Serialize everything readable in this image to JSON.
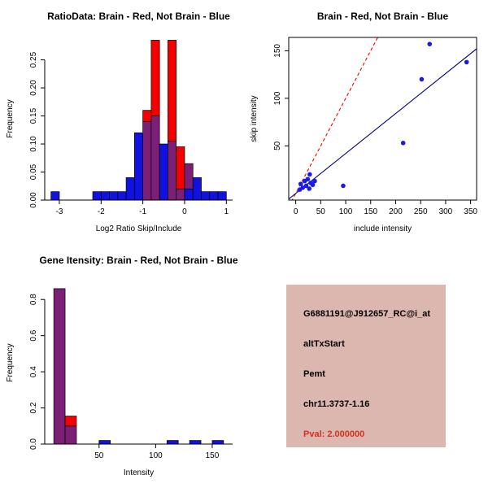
{
  "colors": {
    "background": "#ffffff",
    "red": "#f40000",
    "blue": "#1212e0",
    "purple": "#7b2076",
    "navy": "#00008b",
    "point_blue": "#1a1ae0",
    "axis": "#000000"
  },
  "chart_data": [
    {
      "id": "ratio-histogram",
      "type": "bar",
      "title": "RatioData: Brain - Red, Not Brain - Blue",
      "xlabel": "Log2 Ratio Skip/Include",
      "ylabel": "Frequency",
      "xlim": [
        -3.35,
        1.15
      ],
      "ylim": [
        0,
        0.29
      ],
      "xticks": [
        -3,
        -2,
        -1,
        0,
        1
      ],
      "yticks": [
        [
          0,
          "0.00"
        ],
        [
          0.05,
          "0.05"
        ],
        [
          0.1,
          "0.10"
        ],
        [
          0.15,
          "0.15"
        ],
        [
          0.2,
          "0.20"
        ],
        [
          0.25,
          "0.25"
        ]
      ],
      "bin_width": 0.2,
      "bars": [
        {
          "x0": -3.2,
          "segments": [
            [
              "blue",
              0.015
            ]
          ]
        },
        {
          "x0": -2.2,
          "segments": [
            [
              "blue",
              0.015
            ]
          ]
        },
        {
          "x0": -2.0,
          "segments": [
            [
              "blue",
              0.015
            ]
          ]
        },
        {
          "x0": -1.8,
          "segments": [
            [
              "blue",
              0.015
            ]
          ]
        },
        {
          "x0": -1.6,
          "segments": [
            [
              "blue",
              0.015
            ]
          ]
        },
        {
          "x0": -1.4,
          "segments": [
            [
              "blue",
              0.04
            ]
          ]
        },
        {
          "x0": -1.2,
          "segments": [
            [
              "blue",
              0.12
            ]
          ]
        },
        {
          "x0": -1.0,
          "segments": [
            [
              "purple",
              0.14
            ],
            [
              "red",
              0.02
            ]
          ]
        },
        {
          "x0": -0.8,
          "segments": [
            [
              "purple",
              0.15
            ],
            [
              "red",
              0.135
            ]
          ]
        },
        {
          "x0": -0.6,
          "segments": [
            [
              "blue",
              0.1
            ]
          ]
        },
        {
          "x0": -0.4,
          "segments": [
            [
              "purple",
              0.105
            ],
            [
              "red",
              0.18
            ]
          ]
        },
        {
          "x0": -0.2,
          "segments": [
            [
              "purple",
              0.02
            ],
            [
              "red",
              0.075
            ]
          ]
        },
        {
          "x0": 0.0,
          "segments": [
            [
              "blue",
              0.02
            ],
            [
              "purple",
              0.045
            ]
          ]
        },
        {
          "x0": 0.2,
          "segments": [
            [
              "blue",
              0.04
            ]
          ]
        },
        {
          "x0": 0.4,
          "segments": [
            [
              "blue",
              0.015
            ]
          ]
        },
        {
          "x0": 0.6,
          "segments": [
            [
              "blue",
              0.015
            ]
          ]
        },
        {
          "x0": 0.8,
          "segments": [
            [
              "blue",
              0.015
            ]
          ]
        }
      ]
    },
    {
      "id": "intensity-scatter",
      "type": "scatter",
      "title": "Brain - Red, Not Brain - Blue",
      "xlabel": "include intensity",
      "ylabel": "skip intensity",
      "xlim": [
        -14,
        362
      ],
      "ylim": [
        -7,
        164
      ],
      "xticks": [
        0,
        50,
        100,
        150,
        200,
        250,
        300,
        350
      ],
      "yticks": [
        [
          50,
          "50"
        ],
        [
          100,
          "100"
        ],
        [
          150,
          "150"
        ]
      ],
      "points": [
        [
          8,
          4
        ],
        [
          10,
          10
        ],
        [
          14,
          6
        ],
        [
          18,
          13
        ],
        [
          21,
          8
        ],
        [
          24,
          15
        ],
        [
          27,
          5
        ],
        [
          30,
          11
        ],
        [
          28,
          20
        ],
        [
          34,
          9
        ],
        [
          38,
          13
        ],
        [
          95,
          8
        ],
        [
          215,
          53
        ],
        [
          252,
          120
        ],
        [
          268,
          157
        ],
        [
          342,
          138
        ]
      ],
      "lines": [
        {
          "name": "identity",
          "slope": 1,
          "intercept": 0,
          "color": "red",
          "dashed": true
        },
        {
          "name": "fit",
          "slope": 0.42,
          "intercept": 0,
          "color": "navy",
          "dashed": false
        }
      ]
    },
    {
      "id": "gene-intensity-histogram",
      "type": "bar",
      "title": "Gene Itensity: Brain - Red, Not Brain - Blue",
      "xlabel": "Intensity",
      "ylabel": "Frequency",
      "xlim": [
        2,
        168
      ],
      "ylim": [
        0,
        0.9
      ],
      "xticks": [
        50,
        100,
        150
      ],
      "yticks": [
        [
          0,
          "0.0"
        ],
        [
          0.2,
          "0.2"
        ],
        [
          0.4,
          "0.4"
        ],
        [
          0.6,
          "0.6"
        ],
        [
          0.8,
          "0.8"
        ]
      ],
      "bin_width": 10,
      "bars": [
        {
          "x0": 10,
          "segments": [
            [
              "purple",
              0.86
            ]
          ]
        },
        {
          "x0": 20,
          "segments": [
            [
              "purple",
              0.1
            ],
            [
              "red",
              0.055
            ]
          ]
        },
        {
          "x0": 50,
          "segments": [
            [
              "blue",
              0.02
            ]
          ]
        },
        {
          "x0": 110,
          "segments": [
            [
              "blue",
              0.02
            ]
          ]
        },
        {
          "x0": 130,
          "segments": [
            [
              "blue",
              0.02
            ]
          ]
        },
        {
          "x0": 150,
          "segments": [
            [
              "blue",
              0.02
            ]
          ]
        }
      ]
    }
  ],
  "info_box": {
    "bg": "#dcb7af",
    "text_color": "#000000",
    "pval_color": "#d2321e",
    "lines": [
      "G6881191@J912657_RC@i_at",
      "altTxStart",
      "Pemt",
      "chr11.3737-1.16",
      "Pval: 2.000000"
    ]
  }
}
